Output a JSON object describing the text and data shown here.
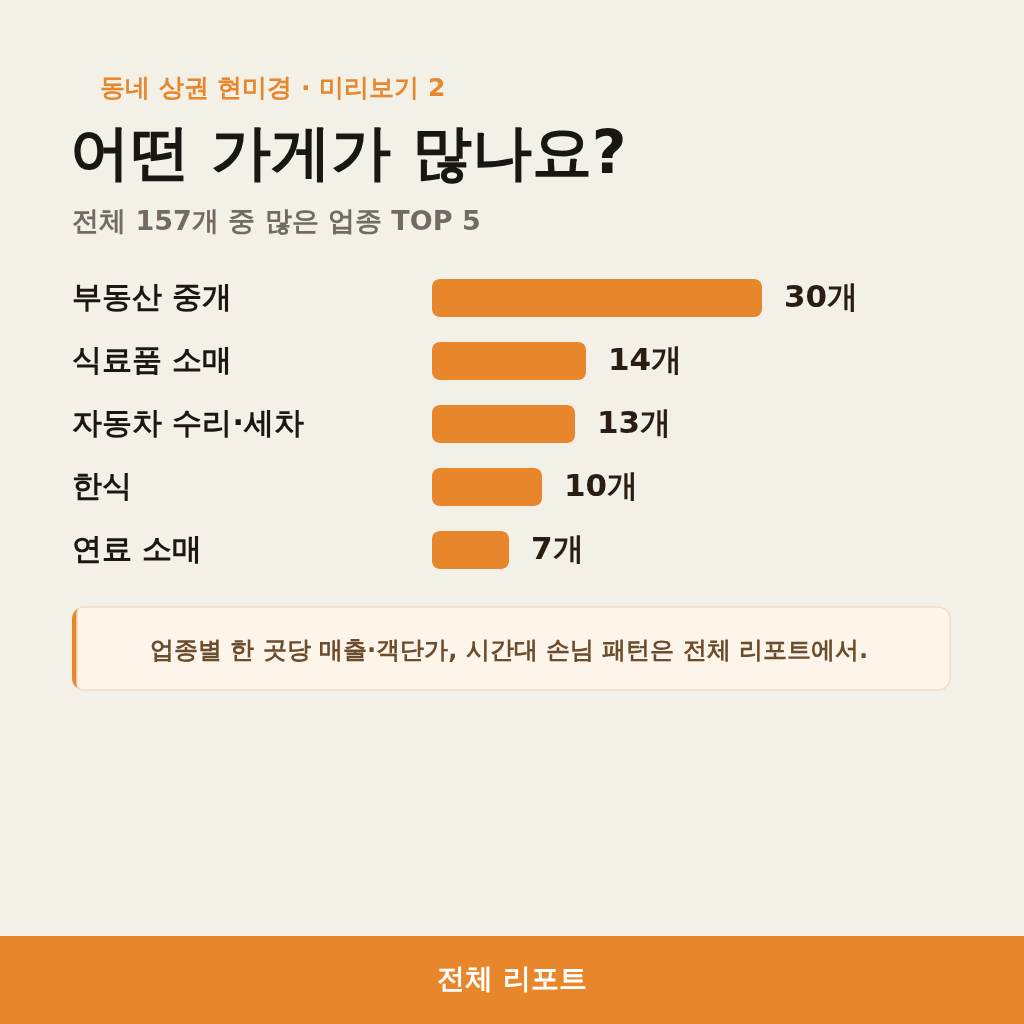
{
  "chart_data": {
    "type": "bar",
    "orientation": "horizontal",
    "title": "어떤 가게가 많나요?",
    "subtitle": "전체 157개 중 많은 업종 TOP 5",
    "categories": [
      "부동산 중개",
      "식료품 소매",
      "자동차 수리·세차",
      "한식",
      "연료 소매"
    ],
    "values": [
      30,
      14,
      13,
      10,
      7
    ],
    "color": "#e8862b",
    "value_labels": [
      "30개",
      "14개",
      "13개",
      "10개",
      "7개"
    ],
    "annotations": [
      "동네 상권 현미경 · 미리보기 2",
      "업종별 한 곳당 매출·객단가, 시간대 손님 패턴은 전체 리포트에서.",
      "전체 리포트"
    ]
  }
}
